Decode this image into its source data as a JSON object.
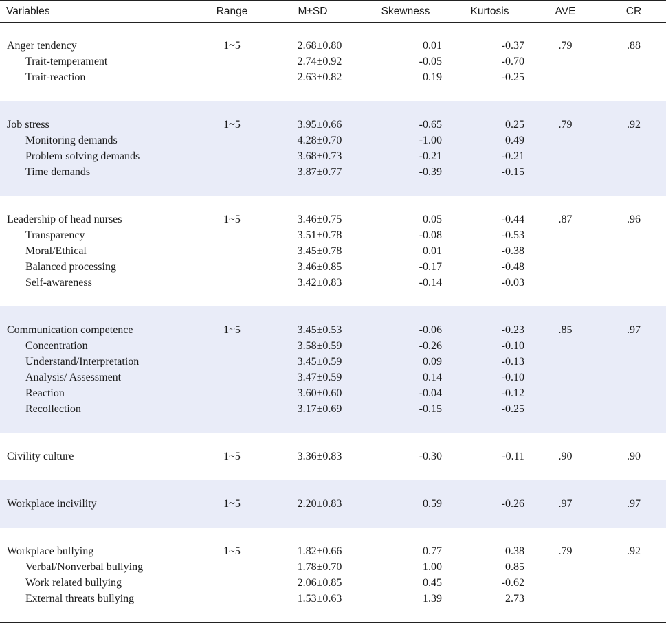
{
  "headers": {
    "variables": "Variables",
    "range": "Range",
    "msd": "M±SD",
    "skewness": "Skewness",
    "kurtosis": "Kurtosis",
    "ave": "AVE",
    "cr": "CR"
  },
  "groups": [
    {
      "name": "Anger tendency",
      "range": "1~5",
      "msd": "2.68±0.80",
      "skewness": "0.01",
      "kurtosis": "-0.37",
      "ave": ".79",
      "cr": ".88",
      "subs": [
        {
          "name": "Trait-temperament",
          "msd": "2.74±0.92",
          "skewness": "-0.05",
          "kurtosis": "-0.70"
        },
        {
          "name": "Trait-reaction",
          "msd": "2.63±0.82",
          "skewness": "0.19",
          "kurtosis": "-0.25"
        }
      ]
    },
    {
      "name": "Job stress",
      "range": "1~5",
      "msd": "3.95±0.66",
      "skewness": "-0.65",
      "kurtosis": "0.25",
      "ave": ".79",
      "cr": ".92",
      "subs": [
        {
          "name": "Monitoring demands",
          "msd": "4.28±0.70",
          "skewness": "-1.00",
          "kurtosis": "0.49"
        },
        {
          "name": "Problem solving demands",
          "msd": "3.68±0.73",
          "skewness": "-0.21",
          "kurtosis": "-0.21"
        },
        {
          "name": "Time demands",
          "msd": "3.87±0.77",
          "skewness": "-0.39",
          "kurtosis": "-0.15"
        }
      ]
    },
    {
      "name": "Leadership of head nurses",
      "range": "1~5",
      "msd": "3.46±0.75",
      "skewness": "0.05",
      "kurtosis": "-0.44",
      "ave": ".87",
      "cr": ".96",
      "subs": [
        {
          "name": "Transparency",
          "msd": "3.51±0.78",
          "skewness": "-0.08",
          "kurtosis": "-0.53"
        },
        {
          "name": "Moral/Ethical",
          "msd": "3.45±0.78",
          "skewness": "0.01",
          "kurtosis": "-0.38"
        },
        {
          "name": "Balanced processing",
          "msd": "3.46±0.85",
          "skewness": "-0.17",
          "kurtosis": "-0.48"
        },
        {
          "name": "Self-awareness",
          "msd": "3.42±0.83",
          "skewness": "-0.14",
          "kurtosis": "-0.03"
        }
      ]
    },
    {
      "name": "Communication competence",
      "range": "1~5",
      "msd": "3.45±0.53",
      "skewness": "-0.06",
      "kurtosis": "-0.23",
      "ave": ".85",
      "cr": ".97",
      "subs": [
        {
          "name": "Concentration",
          "msd": "3.58±0.59",
          "skewness": "-0.26",
          "kurtosis": "-0.10"
        },
        {
          "name": "Understand/Interpretation",
          "msd": "3.45±0.59",
          "skewness": "0.09",
          "kurtosis": "-0.13"
        },
        {
          "name": "Analysis/ Assessment",
          "msd": "3.47±0.59",
          "skewness": "0.14",
          "kurtosis": "-0.10"
        },
        {
          "name": "Reaction",
          "msd": "3.60±0.60",
          "skewness": "-0.04",
          "kurtosis": "-0.12"
        },
        {
          "name": "Recollection",
          "msd": "3.17±0.69",
          "skewness": "-0.15",
          "kurtosis": "-0.25"
        }
      ]
    },
    {
      "name": "Civility culture",
      "range": "1~5",
      "msd": "3.36±0.83",
      "skewness": "-0.30",
      "kurtosis": "-0.11",
      "ave": ".90",
      "cr": ".90",
      "subs": []
    },
    {
      "name": "Workplace incivility",
      "range": "1~5",
      "msd": "2.20±0.83",
      "skewness": "0.59",
      "kurtosis": "-0.26",
      "ave": ".97",
      "cr": ".97",
      "subs": []
    },
    {
      "name": "Workplace bullying",
      "range": "1~5",
      "msd": "1.82±0.66",
      "skewness": "0.77",
      "kurtosis": "0.38",
      "ave": ".79",
      "cr": ".92",
      "subs": [
        {
          "name": "Verbal/Nonverbal bullying",
          "msd": "1.78±0.70",
          "skewness": "1.00",
          "kurtosis": "0.85"
        },
        {
          "name": "Work related bullying",
          "msd": "2.06±0.85",
          "skewness": "0.45",
          "kurtosis": "-0.62"
        },
        {
          "name": "External threats bullying",
          "msd": "1.53±0.63",
          "skewness": "1.39",
          "kurtosis": "2.73"
        }
      ]
    }
  ]
}
